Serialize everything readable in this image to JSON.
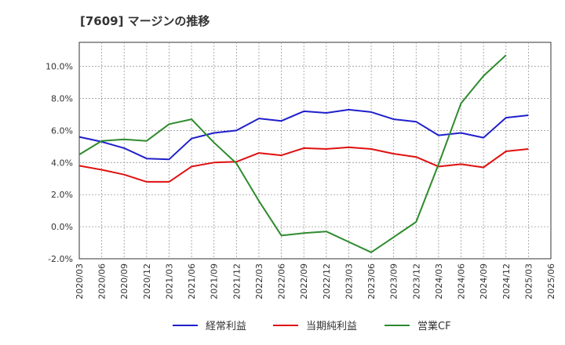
{
  "chart_data": {
    "type": "line",
    "title": "[7609]  マージンの推移",
    "x": [
      "2020/03",
      "2020/06",
      "2020/09",
      "2020/12",
      "2021/03",
      "2021/06",
      "2021/09",
      "2021/12",
      "2022/03",
      "2022/06",
      "2022/09",
      "2022/12",
      "2023/03",
      "2023/06",
      "2023/09",
      "2023/12",
      "2024/03",
      "2024/06",
      "2024/09",
      "2024/12",
      "2025/03",
      "2025/06"
    ],
    "ylim": [
      -2.0,
      11.5
    ],
    "yticks": [
      -2.0,
      0.0,
      2.0,
      4.0,
      6.0,
      8.0,
      10.0
    ],
    "ytick_labels": [
      "-2.0%",
      "0.0%",
      "2.0%",
      "4.0%",
      "6.0%",
      "8.0%",
      "10.0%"
    ],
    "grid": true,
    "legend_position": "bottom",
    "series": [
      {
        "name": "経常利益",
        "color": "#1f1fcc",
        "values": [
          5.6,
          5.3,
          4.9,
          4.25,
          4.2,
          5.5,
          5.85,
          6.0,
          6.75,
          6.6,
          7.2,
          7.1,
          7.3,
          7.15,
          6.7,
          6.55,
          5.7,
          5.85,
          5.55,
          6.8,
          6.95,
          null
        ]
      },
      {
        "name": "当期純利益",
        "color": "#e01010",
        "values": [
          3.8,
          3.55,
          3.25,
          2.8,
          2.8,
          3.75,
          4.0,
          4.05,
          4.6,
          4.45,
          4.9,
          4.85,
          4.95,
          4.85,
          4.55,
          4.35,
          3.75,
          3.9,
          3.7,
          4.7,
          4.85,
          null
        ]
      },
      {
        "name": "営業CF",
        "color": "#2e8b2e",
        "values": [
          4.5,
          5.35,
          5.45,
          5.35,
          6.4,
          6.7,
          5.25,
          3.95,
          1.6,
          -0.55,
          -0.4,
          -0.3,
          -0.95,
          -1.6,
          -0.65,
          0.3,
          3.9,
          7.7,
          9.4,
          10.7,
          null,
          null
        ]
      }
    ]
  }
}
